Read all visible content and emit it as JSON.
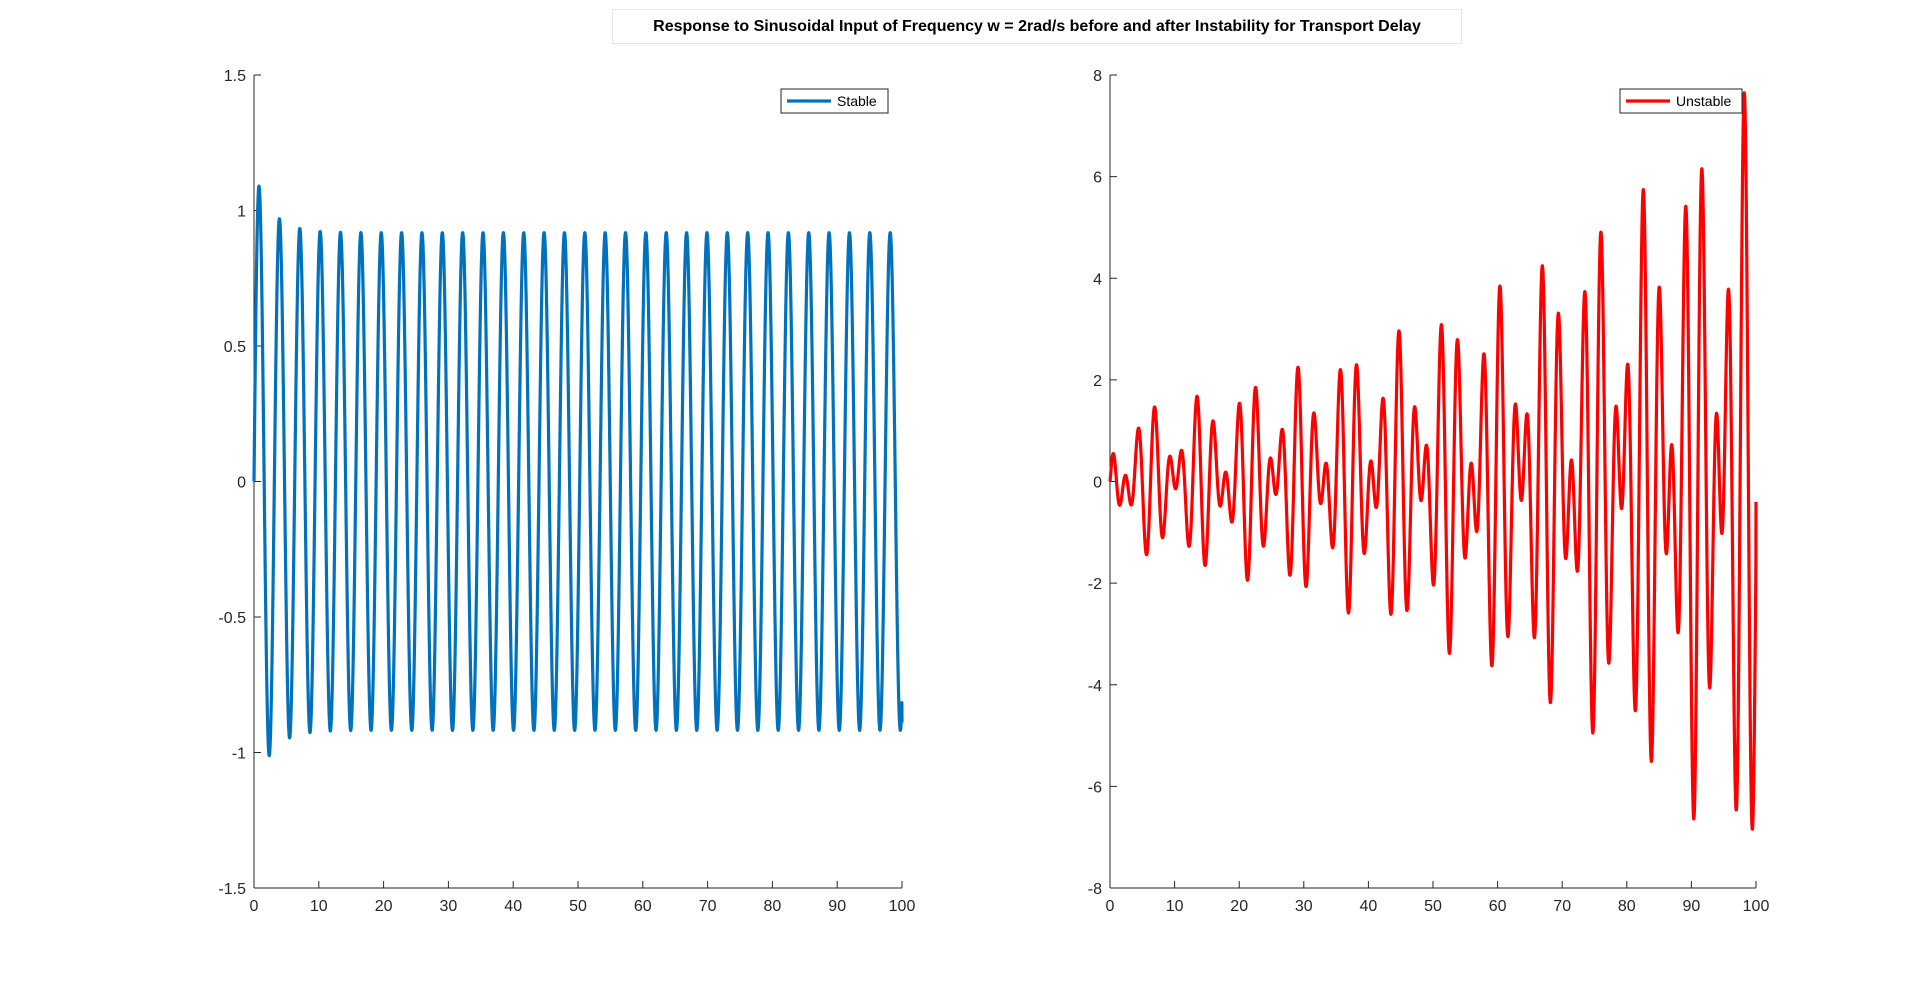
{
  "chart_data": [
    {
      "type": "line",
      "title": "Response to Sinusoidal Input of Frequency w = 2rad/s before and after Instability for Transport Delay",
      "xlabel": "",
      "ylabel": "",
      "xlim": [
        0,
        100
      ],
      "ylim": [
        -1.5,
        1.5
      ],
      "xticks": [
        "0",
        "10",
        "20",
        "30",
        "40",
        "50",
        "60",
        "70",
        "80",
        "90",
        "100"
      ],
      "yticks": [
        "-1.5",
        "-1",
        "-0.5",
        "0",
        "0.5",
        "1",
        "1.5"
      ],
      "grid": false,
      "legend_position": "top-right",
      "series": [
        {
          "name": "Stable",
          "color": "#0072BD",
          "description": "sinusoid w=2 rad/s, starts at 0, first peak 1.15, settles to amplitude ~0.92, ends near -0.89 at t=100",
          "x": [
            0,
            1.3,
            2.8,
            4.4,
            6.0,
            7.6,
            9.1,
            10.7,
            12.3,
            15.0,
            20.0,
            30.0,
            40.0,
            50.0,
            60.0,
            70.0,
            80.0,
            90.0,
            100.0
          ],
          "values": [
            0,
            1.15,
            -1.08,
            1.01,
            -0.97,
            0.95,
            -0.94,
            0.93,
            -0.92,
            0.92,
            0.92,
            0.92,
            0.92,
            0.92,
            0.92,
            0.92,
            0.92,
            0.92,
            -0.89
          ]
        }
      ]
    },
    {
      "type": "line",
      "xlabel": "",
      "ylabel": "",
      "xlim": [
        0,
        100
      ],
      "ylim": [
        -8,
        8
      ],
      "xticks": [
        "0",
        "10",
        "20",
        "30",
        "40",
        "50",
        "60",
        "70",
        "80",
        "90",
        "100"
      ],
      "yticks": [
        "-8",
        "-6",
        "-4",
        "-2",
        "0",
        "2",
        "4",
        "6",
        "8"
      ],
      "grid": false,
      "legend_position": "top-right",
      "series": [
        {
          "name": "Unstable",
          "color": "#FF0000",
          "description": "growing oscillation, envelope ~1.3 at t=1 rising to ~6.9 near t=99, ends near -0.4 at t=100",
          "x": [
            0,
            1,
            10,
            20,
            30,
            40,
            50,
            60,
            70,
            80,
            85,
            90,
            95,
            99,
            100
          ],
          "values": [
            0,
            1.3,
            1.55,
            1.8,
            2.0,
            2.3,
            2.45,
            2.7,
            3.1,
            4.1,
            4.9,
            5.6,
            6.3,
            6.85,
            -0.4
          ]
        }
      ]
    }
  ]
}
